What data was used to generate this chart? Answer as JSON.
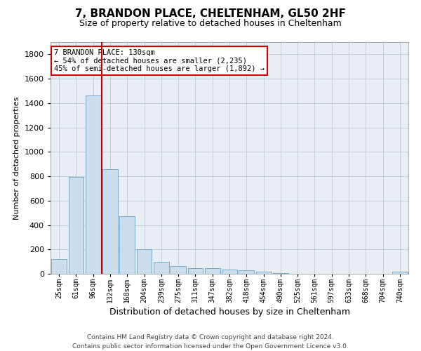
{
  "title": "7, BRANDON PLACE, CHELTENHAM, GL50 2HF",
  "subtitle": "Size of property relative to detached houses in Cheltenham",
  "xlabel": "Distribution of detached houses by size in Cheltenham",
  "ylabel": "Number of detached properties",
  "footer_line1": "Contains HM Land Registry data © Crown copyright and database right 2024.",
  "footer_line2": "Contains public sector information licensed under the Open Government Licence v3.0.",
  "bar_labels": [
    "25sqm",
    "61sqm",
    "96sqm",
    "132sqm",
    "168sqm",
    "204sqm",
    "239sqm",
    "275sqm",
    "311sqm",
    "347sqm",
    "382sqm",
    "418sqm",
    "454sqm",
    "490sqm",
    "525sqm",
    "561sqm",
    "597sqm",
    "633sqm",
    "668sqm",
    "704sqm",
    "740sqm"
  ],
  "bar_values": [
    120,
    795,
    1460,
    860,
    470,
    200,
    100,
    65,
    45,
    45,
    35,
    28,
    15,
    3,
    2,
    2,
    2,
    2,
    2,
    2,
    15
  ],
  "bar_color": "#ccdded",
  "bar_edge_color": "#7aaac8",
  "vline_x_index": 2.5,
  "vline_color": "#cc0000",
  "annotation_title": "7 BRANDON PLACE: 130sqm",
  "annotation_line1": "← 54% of detached houses are smaller (2,235)",
  "annotation_line2": "45% of semi-detached houses are larger (1,892) →",
  "annotation_box_color": "#cc0000",
  "ylim": [
    0,
    1900
  ],
  "yticks": [
    0,
    200,
    400,
    600,
    800,
    1000,
    1200,
    1400,
    1600,
    1800
  ],
  "background_color": "#e8eef4",
  "grid_color": "#c0c8d0",
  "title_fontsize": 11,
  "subtitle_fontsize": 9,
  "ylabel_fontsize": 8,
  "xlabel_fontsize": 9,
  "tick_fontsize": 7,
  "ytick_fontsize": 8,
  "annotation_fontsize": 7.5,
  "footer_fontsize": 6.5
}
